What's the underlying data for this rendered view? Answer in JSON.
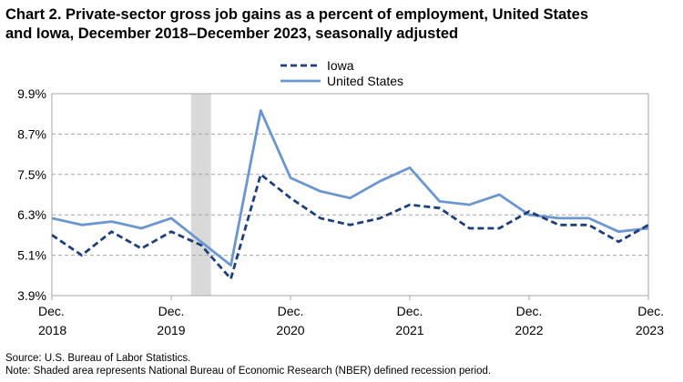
{
  "title_line1": "Chart 2. Private-sector gross job gains as a percent of employment, United States",
  "title_line2": "and Iowa, December 2018–December 2023, seasonally adjusted",
  "source_note": "Source: U.S. Bureau of Labor Statistics.",
  "shading_note": "Note: Shaded area represents National Bureau of Economic Research (NBER) defined recession period.",
  "chart_data": {
    "type": "line",
    "title": "Chart 2. Private-sector gross job gains as a percent of employment, United States and Iowa, December 2018–December 2023, seasonally adjusted",
    "x": [
      "Dec 2018",
      "Mar 2019",
      "Jun 2019",
      "Sep 2019",
      "Dec 2019",
      "Mar 2020",
      "Jun 2020",
      "Sep 2020",
      "Dec 2020",
      "Mar 2021",
      "Jun 2021",
      "Sep 2021",
      "Dec 2021",
      "Mar 2022",
      "Jun 2022",
      "Sep 2022",
      "Dec 2022",
      "Mar 2023",
      "Jun 2023",
      "Sep 2023",
      "Dec 2023"
    ],
    "series": [
      {
        "name": "Iowa",
        "style": "dashed",
        "color": "#1f3f7a",
        "values": [
          5.7,
          5.1,
          5.8,
          5.3,
          5.8,
          5.4,
          4.4,
          7.5,
          6.8,
          6.2,
          6.0,
          6.2,
          6.6,
          6.5,
          5.9,
          5.9,
          6.4,
          6.0,
          6.0,
          5.5,
          6.0
        ]
      },
      {
        "name": "United States",
        "style": "solid",
        "color": "#6b96d0",
        "values": [
          6.2,
          6.0,
          6.1,
          5.9,
          6.2,
          5.5,
          4.8,
          9.4,
          7.4,
          7.0,
          6.8,
          7.3,
          7.7,
          6.7,
          6.6,
          6.9,
          6.3,
          6.2,
          6.2,
          5.8,
          5.9
        ]
      }
    ],
    "yticks": [
      "3.9%",
      "5.1%",
      "6.3%",
      "7.5%",
      "8.7%",
      "9.9%"
    ],
    "ylim": [
      3.9,
      9.9
    ],
    "xtick_labels": [
      {
        "line1": "Dec.",
        "line2": "2018"
      },
      {
        "line1": "Dec.",
        "line2": "2019"
      },
      {
        "line1": "Dec.",
        "line2": "2020"
      },
      {
        "line1": "Dec.",
        "line2": "2021"
      },
      {
        "line1": "Dec.",
        "line2": "2022"
      },
      {
        "line1": "Dec.",
        "line2": "2023"
      }
    ],
    "recession_shading": {
      "start": "Feb 2020",
      "end": "Apr 2020",
      "color": "#d9d9d9"
    },
    "grid": "horizontal dashed",
    "legend_position": "top-center"
  }
}
